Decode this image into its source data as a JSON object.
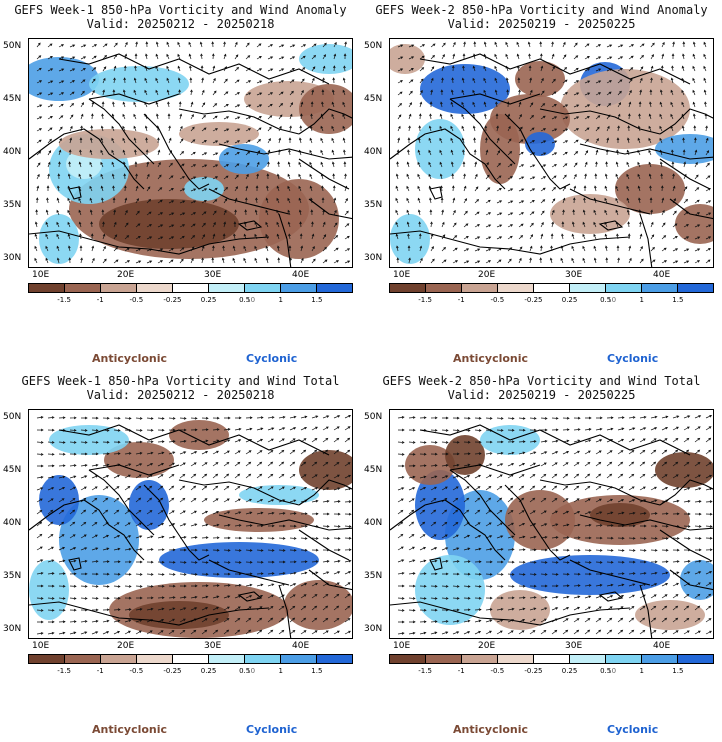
{
  "palette": {
    "anti3": "#70412e",
    "anti2": "#9a6552",
    "anti1": "#c9a493",
    "anti0": "#ecd8cc",
    "neutral": "#ffffff",
    "cyc0": "#c3eff8",
    "cyc1": "#7fd4f2",
    "cyc2": "#4c9ee6",
    "cyc3": "#2368d8",
    "anti_label": "#7b4a35",
    "cyc_label": "#1f63d1"
  },
  "colorbar": {
    "labels": [
      "-1.5",
      "-1",
      "-0.5",
      "-0.25",
      "0.25",
      "0.5",
      "1",
      "1.5"
    ],
    "scale_note": "10"
  },
  "legend": {
    "anticyclonic": "Anticyclonic",
    "cyclonic": "Cyclonic"
  },
  "axes": {
    "lat_labels": [
      "50N",
      "45N",
      "40N",
      "35N",
      "30N"
    ],
    "lon_labels": [
      "10E",
      "20E",
      "30E",
      "40E"
    ]
  },
  "panels": [
    {
      "title": "GEFS Week-1 850-hPa Vorticity and Wind Anomaly",
      "valid": "Valid: 20250212 - 20250218"
    },
    {
      "title": "GEFS Week-2 850-hPa Vorticity and Wind Anomaly",
      "valid": "Valid: 20250219 - 20250225"
    },
    {
      "title": "GEFS Week-1 850-hPa Vorticity and Wind Total",
      "valid": "Valid: 20250212 - 20250218"
    },
    {
      "title": "GEFS Week-2 850-hPa Vorticity and Wind Total",
      "valid": "Valid: 20250219 - 20250225"
    }
  ]
}
